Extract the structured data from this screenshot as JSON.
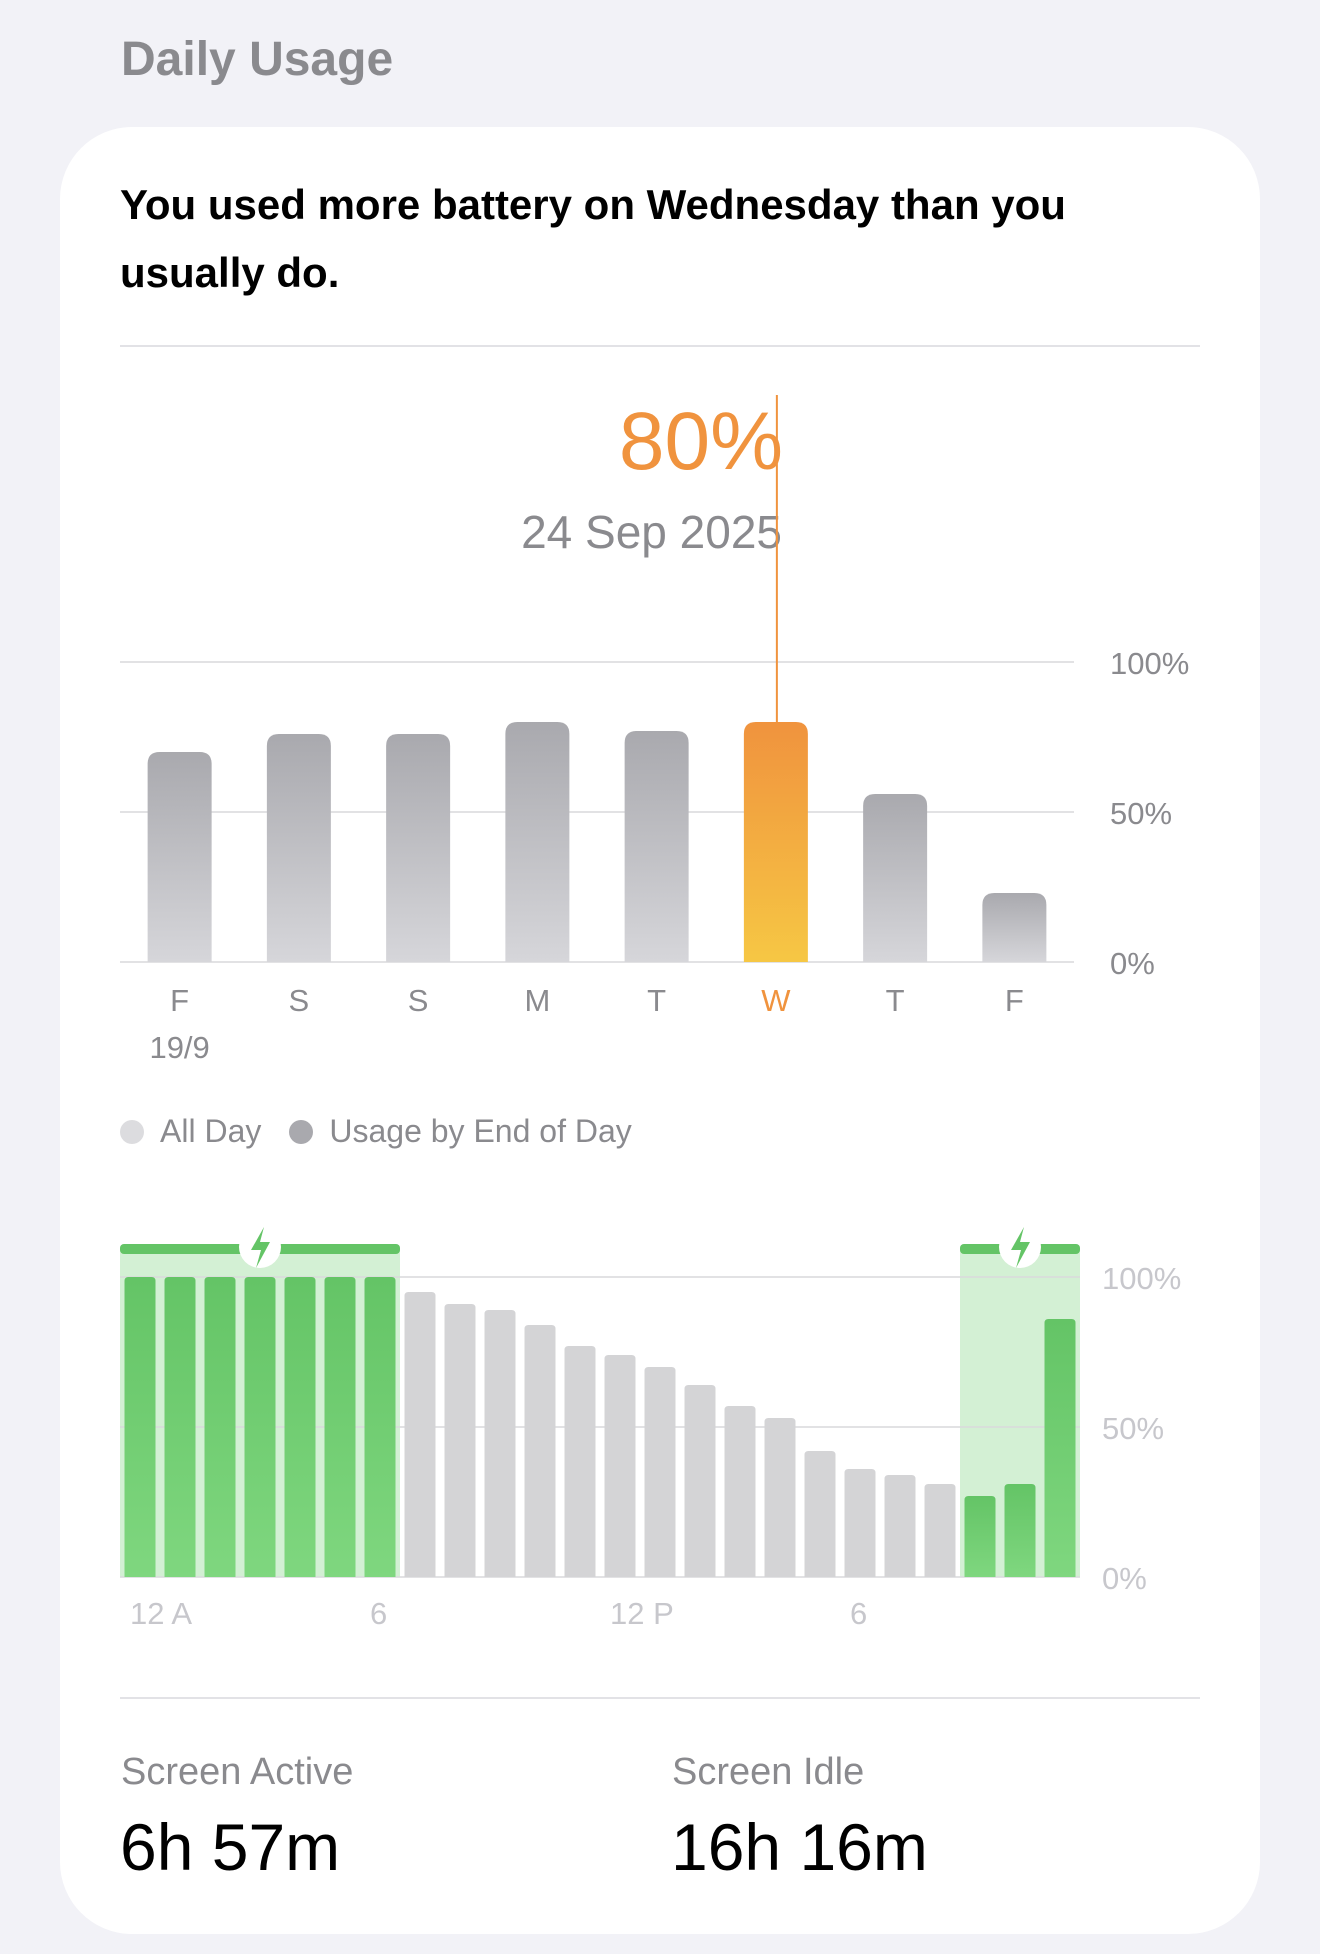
{
  "section_title": "Daily Usage",
  "headline": "You used more battery on Wednesday than you usually do.",
  "selected": {
    "percent": "80%",
    "date": "24 Sep 2025"
  },
  "colors": {
    "selected_top": "#f0933e",
    "selected_bottom": "#f6c744",
    "bar_gray_top": "#a9a9ae",
    "bar_gray_bottom": "#d6d6da",
    "charge_green": "#64c466",
    "charge_zone": "#d3f0d4",
    "hour_gray": "#d4d4d6"
  },
  "legend": [
    {
      "label": "All Day",
      "color": "#dcdcdf"
    },
    {
      "label": "Usage by End of Day",
      "color": "#a9a9ae"
    }
  ],
  "chart_data": [
    {
      "type": "bar",
      "categories": [
        "F",
        "S",
        "S",
        "M",
        "T",
        "W",
        "T",
        "F"
      ],
      "sublabels": [
        "19/9",
        "",
        "",
        "",
        "",
        "",
        "",
        ""
      ],
      "values": [
        70,
        76,
        76,
        80,
        77,
        80,
        56,
        23
      ],
      "selected_index": 5,
      "ylim": [
        0,
        100
      ],
      "yticks": [
        "100%",
        "50%",
        "0%"
      ],
      "grid": true
    },
    {
      "type": "bar",
      "x_tick_labels": [
        "12 A",
        "6",
        "12 P",
        "6"
      ],
      "values": [
        100,
        100,
        100,
        100,
        100,
        100,
        100,
        95,
        91,
        89,
        84,
        77,
        74,
        70,
        64,
        57,
        53,
        42,
        36,
        34,
        31,
        27,
        31,
        86
      ],
      "charging": [
        true,
        true,
        true,
        true,
        true,
        true,
        true,
        false,
        false,
        false,
        false,
        false,
        false,
        false,
        false,
        false,
        false,
        false,
        false,
        false,
        false,
        true,
        true,
        true
      ],
      "charging_periods": [
        [
          0,
          7
        ],
        [
          21,
          24
        ]
      ],
      "ylim": [
        0,
        100
      ],
      "yticks": [
        "100%",
        "50%",
        "0%"
      ],
      "grid": true
    }
  ],
  "stats": [
    {
      "label": "Screen Active",
      "value": "6h 57m"
    },
    {
      "label": "Screen Idle",
      "value": "16h 16m"
    }
  ]
}
